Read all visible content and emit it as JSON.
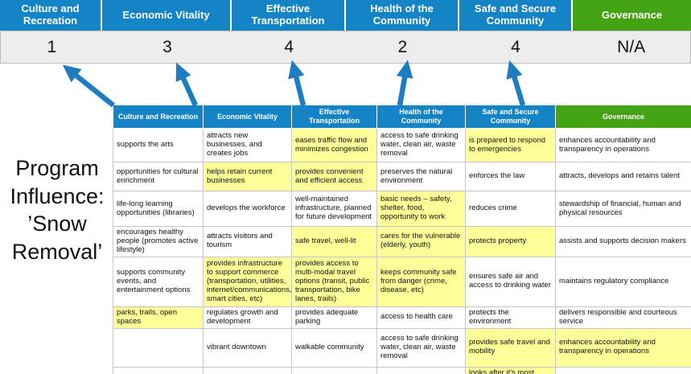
{
  "title": "Program Influence: ’Snow Removal’",
  "colors": {
    "header_blue": "#1584c6",
    "header_green": "#43a313",
    "highlight_yellow": "#ffff99",
    "arrow_blue": "#1e7cc1",
    "score_bg": "#ededed",
    "cell_border": "#c6c6c6"
  },
  "scoreboard": {
    "columns": [
      {
        "label": "Culture and Recreation",
        "score": "1"
      },
      {
        "label": "Economic Vitality",
        "score": "3"
      },
      {
        "label": "Effective Transportation",
        "score": "4"
      },
      {
        "label": "Health of the Community",
        "score": "2"
      },
      {
        "label": "Safe and Secure Community",
        "score": "4"
      },
      {
        "label": "Governance",
        "score": "N/A"
      }
    ]
  },
  "matrix": {
    "headers": [
      "Culture and Recreation",
      "Economic Vitality",
      "Effective Transportation",
      "Health of the Community",
      "Safe and Secure Community",
      "Governance"
    ],
    "rows": [
      [
        {
          "text": "supports the arts",
          "highlight": false
        },
        {
          "text": "attracts new businesses, and creates jobs",
          "highlight": false
        },
        {
          "text": "eases traffic flow and minimizes congestion",
          "highlight": true
        },
        {
          "text": "access to safe drinking water, clean air, waste removal",
          "highlight": false
        },
        {
          "text": "is prepared to respond to emergencies",
          "highlight": true
        },
        {
          "text": "enhances accountability and transparency in operations",
          "highlight": false
        }
      ],
      [
        {
          "text": "opportunities for cultural enrichment",
          "highlight": false
        },
        {
          "text": "helps retain current businesses",
          "highlight": true
        },
        {
          "text": "provides convenient and efficient access",
          "highlight": true
        },
        {
          "text": "preserves the natural environment",
          "highlight": false
        },
        {
          "text": "enforces the law",
          "highlight": false
        },
        {
          "text": "attracts, develops and retains talent",
          "highlight": false
        }
      ],
      [
        {
          "text": "life-long learning opportunities (libraries)",
          "highlight": false
        },
        {
          "text": "develops the workforce",
          "highlight": false
        },
        {
          "text": "well-maintained infrastructure, planned for future development",
          "highlight": false
        },
        {
          "text": "basic needs – safety, shelter, food, opportunity to work",
          "highlight": true
        },
        {
          "text": "reduces crime",
          "highlight": false
        },
        {
          "text": "stewardship of financial, human and physical resources",
          "highlight": false
        }
      ],
      [
        {
          "text": "encourages healthy people (promotes active lifestyle)",
          "highlight": false
        },
        {
          "text": "attracts visitors and tourism",
          "highlight": false
        },
        {
          "text": "safe travel, well-lit",
          "highlight": true
        },
        {
          "text": "cares for the vulnerable (elderly, youth)",
          "highlight": true
        },
        {
          "text": "protects property",
          "highlight": true
        },
        {
          "text": "assists and supports decision makers",
          "highlight": false
        }
      ],
      [
        {
          "text": "supports community events, and entertainment options",
          "highlight": false
        },
        {
          "text": "provides infrastructure to support commerce (transportation, utilities, internet/communications, smart cities, etc)",
          "highlight": true
        },
        {
          "text": "provides access to multi-modal travel options (transit, public transportation, bike lanes, trails)",
          "highlight": true
        },
        {
          "text": "keeps community safe from danger (crime, disease, etc)",
          "highlight": true
        },
        {
          "text": "ensures safe air and access to drinking water",
          "highlight": false
        },
        {
          "text": "maintains regulatory compliance",
          "highlight": false
        }
      ],
      [
        {
          "text": "parks, trails, open spaces",
          "highlight": true
        },
        {
          "text": "regulates growth and development",
          "highlight": false
        },
        {
          "text": "provides adequate parking",
          "highlight": false
        },
        {
          "text": "access to health care",
          "highlight": false
        },
        {
          "text": "protects the environment",
          "highlight": false
        },
        {
          "text": "delivers responsible and courteous service",
          "highlight": false
        }
      ],
      [
        {
          "text": "",
          "highlight": false
        },
        {
          "text": "vibrant downtown",
          "highlight": false
        },
        {
          "text": "walkable community",
          "highlight": false
        },
        {
          "text": "access to safe drinking water, clean air, waste removal",
          "highlight": false
        },
        {
          "text": "provides safe travel and mobility",
          "highlight": true
        },
        {
          "text": "enhances accountability and transparency in operations",
          "highlight": true
        }
      ],
      [
        {
          "text": "",
          "highlight": false
        },
        {
          "text": "",
          "highlight": false
        },
        {
          "text": "",
          "highlight": false
        },
        {
          "text": "",
          "highlight": false
        },
        {
          "text": "looks after it's most vulnerable",
          "highlight": true
        },
        {
          "text": "",
          "highlight": false
        }
      ]
    ]
  }
}
